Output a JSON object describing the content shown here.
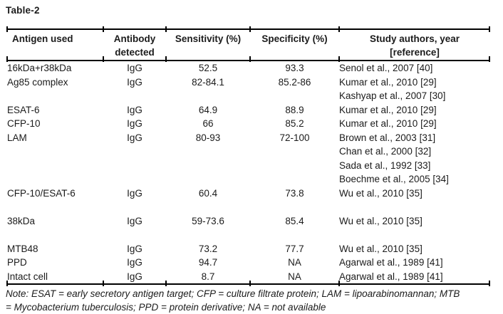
{
  "page": {
    "title": "Table-2"
  },
  "table": {
    "headers": [
      {
        "lines": [
          "Antigen used",
          ""
        ]
      },
      {
        "lines": [
          "Antibody",
          "detected"
        ]
      },
      {
        "lines": [
          "Sensitivity (%)",
          ""
        ]
      },
      {
        "lines": [
          "Specificity (%)",
          ""
        ]
      },
      {
        "lines": [
          "Study authors, year",
          "[reference]"
        ]
      }
    ],
    "groups": [
      {
        "antigen": "16kDa+r38kDa",
        "antibody": "IgG",
        "sensitivity": "52.5",
        "specificity": "93.3",
        "authors": [
          "Senol et al., 2007 [40]"
        ],
        "spacer_after": false
      },
      {
        "antigen": "Ag85 complex",
        "antibody": "IgG",
        "sensitivity": "82-84.1",
        "specificity": "85.2-86",
        "authors": [
          "Kumar et al., 2010 [29]",
          "Kashyap et al., 2007 [30]"
        ],
        "spacer_after": false
      },
      {
        "antigen": "ESAT-6",
        "antibody": "IgG",
        "sensitivity": "64.9",
        "specificity": "88.9",
        "authors": [
          "Kumar et al., 2010 [29]"
        ],
        "spacer_after": false
      },
      {
        "antigen": "CFP-10",
        "antibody": "IgG",
        "sensitivity": "66",
        "specificity": "85.2",
        "authors": [
          "Kumar et al., 2010 [29]"
        ],
        "spacer_after": false
      },
      {
        "antigen": "LAM",
        "antibody": "IgG",
        "sensitivity": "80-93",
        "specificity": "72-100",
        "authors": [
          "Brown et al., 2003 [31]",
          "Chan et al., 2000 [32]",
          "Sada et al., 1992 [33]",
          "Boechme et al., 2005 [34]"
        ],
        "spacer_after": false
      },
      {
        "antigen": "CFP-10/ESAT-6",
        "antibody": "IgG",
        "sensitivity": "60.4",
        "specificity": "73.8",
        "authors": [
          "Wu et al., 2010 [35]"
        ],
        "spacer_after": true
      },
      {
        "antigen": "38kDa",
        "antibody": "IgG",
        "sensitivity": "59-73.6",
        "specificity": "85.4",
        "authors": [
          "Wu et al., 2010 [35]"
        ],
        "spacer_after": true
      },
      {
        "antigen": "MTB48",
        "antibody": "IgG",
        "sensitivity": "73.2",
        "specificity": "77.7",
        "authors": [
          "Wu et al., 2010 [35]"
        ],
        "spacer_after": false
      },
      {
        "antigen": "PPD",
        "antibody": "IgG",
        "sensitivity": "94.7",
        "specificity": "NA",
        "authors": [
          "Agarwal et al., 1989 [41]"
        ],
        "spacer_after": false
      },
      {
        "antigen": "Intact cell",
        "antibody": "IgG",
        "sensitivity": "8.7",
        "specificity": "NA",
        "authors": [
          "Agarwal et al., 1989 [41]"
        ],
        "spacer_after": false
      }
    ]
  },
  "note": {
    "lines": [
      "Note: ESAT = early secretory antigen target; CFP = culture filtrate protein; LAM = lipoarabinomannan; MTB",
      "= Mycobacterium tuberculosis; PPD = protein derivative; NA = not available"
    ]
  },
  "colors": {
    "text": "#1b1b1b",
    "border": "#000000",
    "background": "#ffffff"
  }
}
